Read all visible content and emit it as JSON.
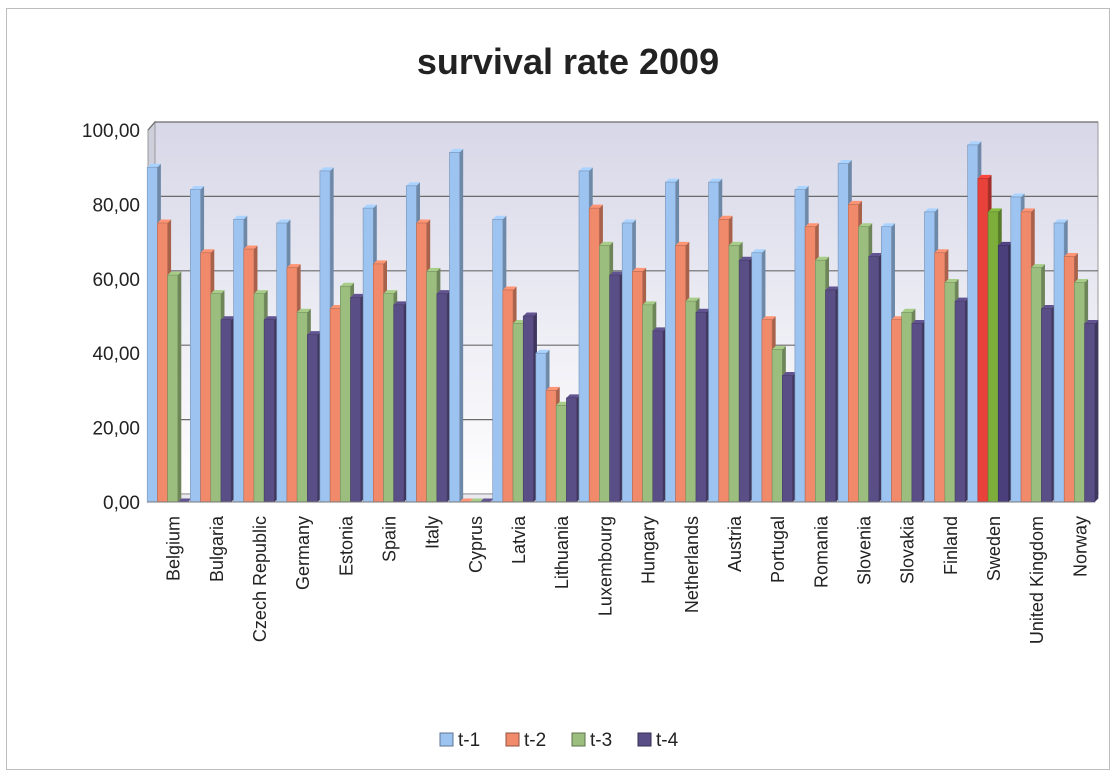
{
  "chart_data": {
    "type": "bar",
    "title": "survival rate 2009",
    "xlabel": "",
    "ylabel": "",
    "ylim": [
      0,
      100
    ],
    "yticks": [
      0,
      20,
      40,
      60,
      80,
      100
    ],
    "ytick_labels": [
      "0,00",
      "20,00",
      "40,00",
      "60,00",
      "80,00",
      "100,00"
    ],
    "grid": true,
    "legend_position": "bottom",
    "categories": [
      "Belgium",
      "Bulgaria",
      "Czech Republic",
      "Germany",
      "Estonia",
      "Spain",
      "Italy",
      "Cyprus",
      "Latvia",
      "Lithuania",
      "Luxembourg",
      "Hungary",
      "Netherlands",
      "Austria",
      "Portugal",
      "Romania",
      "Slovenia",
      "Slovakia",
      "Finland",
      "Sweden",
      "United Kingdom",
      "Norway"
    ],
    "series": [
      {
        "name": "t-1",
        "color": "#9DC3F0",
        "values": [
          90,
          84,
          76,
          75,
          89,
          79,
          85,
          94,
          76,
          40,
          89,
          75,
          86,
          86,
          67,
          84,
          91,
          74,
          78,
          96,
          82,
          75
        ]
      },
      {
        "name": "t-2",
        "color": "#F08A6B",
        "values": [
          75,
          67,
          68,
          63,
          52,
          64,
          75,
          0,
          57,
          30,
          79,
          62,
          69,
          76,
          49,
          74,
          80,
          49,
          67,
          87,
          78,
          66
        ]
      },
      {
        "name": "t-3",
        "color": "#9BBE7E",
        "values": [
          61,
          56,
          56,
          51,
          58,
          56,
          62,
          0,
          48,
          26,
          69,
          53,
          54,
          69,
          41,
          65,
          74,
          51,
          59,
          78,
          63,
          59
        ]
      },
      {
        "name": "t-4",
        "color": "#5A4E86",
        "values": [
          0,
          49,
          49,
          45,
          55,
          53,
          56,
          0,
          50,
          28,
          61,
          46,
          51,
          65,
          34,
          57,
          66,
          48,
          54,
          69,
          52,
          48
        ]
      }
    ],
    "highlight_category": "Sweden",
    "highlight_colors": [
      "#9DC3F0",
      "#E8423A",
      "#7DAE3C",
      "#4A3F7A"
    ]
  }
}
